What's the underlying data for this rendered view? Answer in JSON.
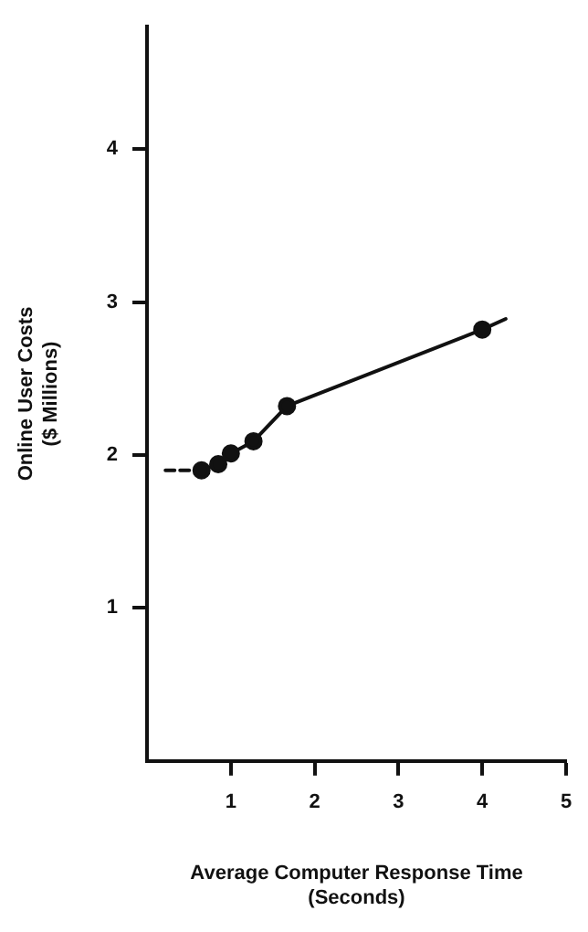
{
  "chart_data": {
    "type": "line",
    "xlabel": "Average Computer Response Time\n(Seconds)",
    "ylabel": "Online User Costs\n($ Millions)",
    "xlim": [
      0,
      5
    ],
    "xticks": [
      1,
      2,
      3,
      4,
      5
    ],
    "ylim": [
      0,
      4.8
    ],
    "yticks": [
      1,
      2,
      3,
      4
    ],
    "grid": false,
    "legend": false,
    "series": [
      {
        "color": "#111111",
        "x": [
          0.22,
          0.55
        ],
        "values": [
          1.9,
          1.9
        ],
        "line_style": "dashed",
        "marker": "none"
      },
      {
        "color": "#111111",
        "x": [
          0.65,
          0.85,
          1.0,
          1.27,
          1.67,
          4.0
        ],
        "values": [
          1.9,
          1.94,
          2.01,
          2.09,
          2.32,
          2.82
        ],
        "line_style": "solid",
        "marker": "circle"
      },
      {
        "color": "#111111",
        "x": [
          4.0,
          4.28
        ],
        "values": [
          2.82,
          2.89
        ],
        "line_style": "solid",
        "marker": "none"
      }
    ]
  }
}
